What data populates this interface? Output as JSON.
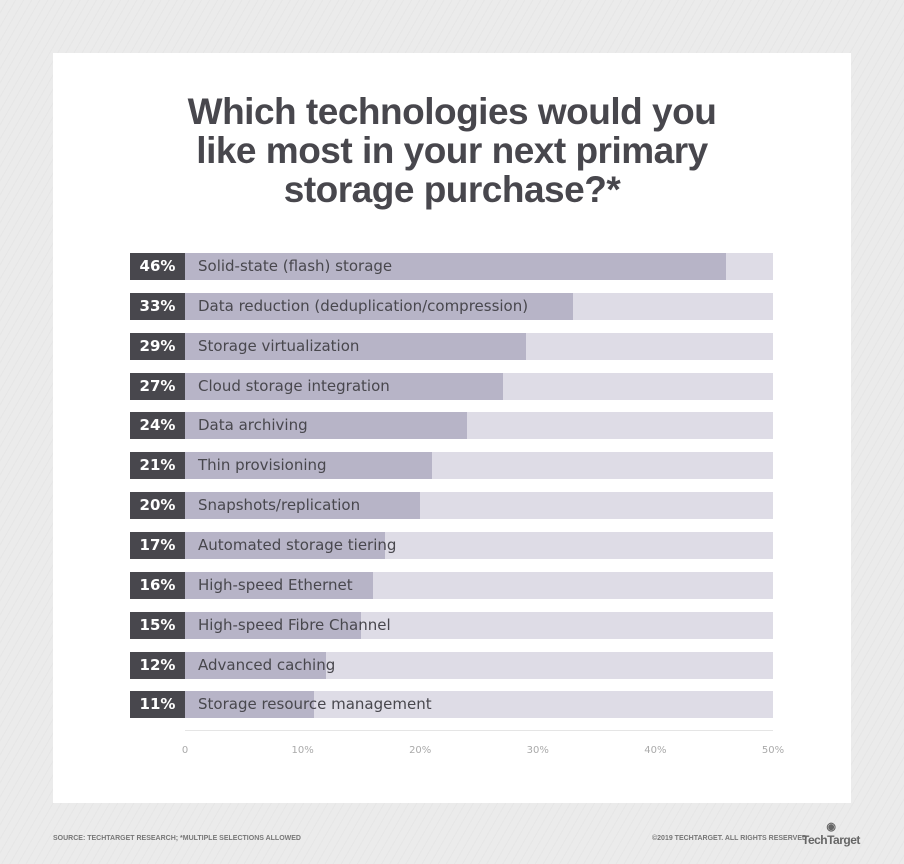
{
  "title_lines": [
    "Which technologies would you",
    "like most in your next primary",
    "storage purchase?*"
  ],
  "chart_data": {
    "type": "bar",
    "orientation": "horizontal",
    "categories": [
      "Solid-state (flash) storage",
      "Data reduction (deduplication/compression)",
      "Storage virtualization",
      "Cloud storage integration",
      "Data archiving",
      "Thin provisioning",
      "Snapshots/replication",
      "Automated storage tiering",
      "High-speed Ethernet",
      "High-speed Fibre Channel",
      "Advanced caching",
      "Storage resource management"
    ],
    "values": [
      46,
      33,
      29,
      27,
      24,
      21,
      20,
      17,
      16,
      15,
      12,
      11
    ],
    "value_labels": [
      "46%",
      "33%",
      "29%",
      "27%",
      "24%",
      "21%",
      "20%",
      "17%",
      "16%",
      "15%",
      "12%",
      "11%"
    ],
    "xlim": [
      0,
      50
    ],
    "xticks": [
      "0",
      "10%",
      "20%",
      "30%",
      "40%",
      "50%"
    ],
    "title": "Which technologies would you like most in your next primary storage purchase?*",
    "grid": false,
    "colors": {
      "fill": "#b7b4c7",
      "track": "#dedce6",
      "label_box": "#48474d"
    }
  },
  "footer": {
    "source": "SOURCE: TECHTARGET RESEARCH; *MULTIPLE SELECTIONS ALLOWED",
    "copyright": "©2019 TECHTARGET. ALL RIGHTS RESERVED",
    "logo": "TechTarget"
  }
}
